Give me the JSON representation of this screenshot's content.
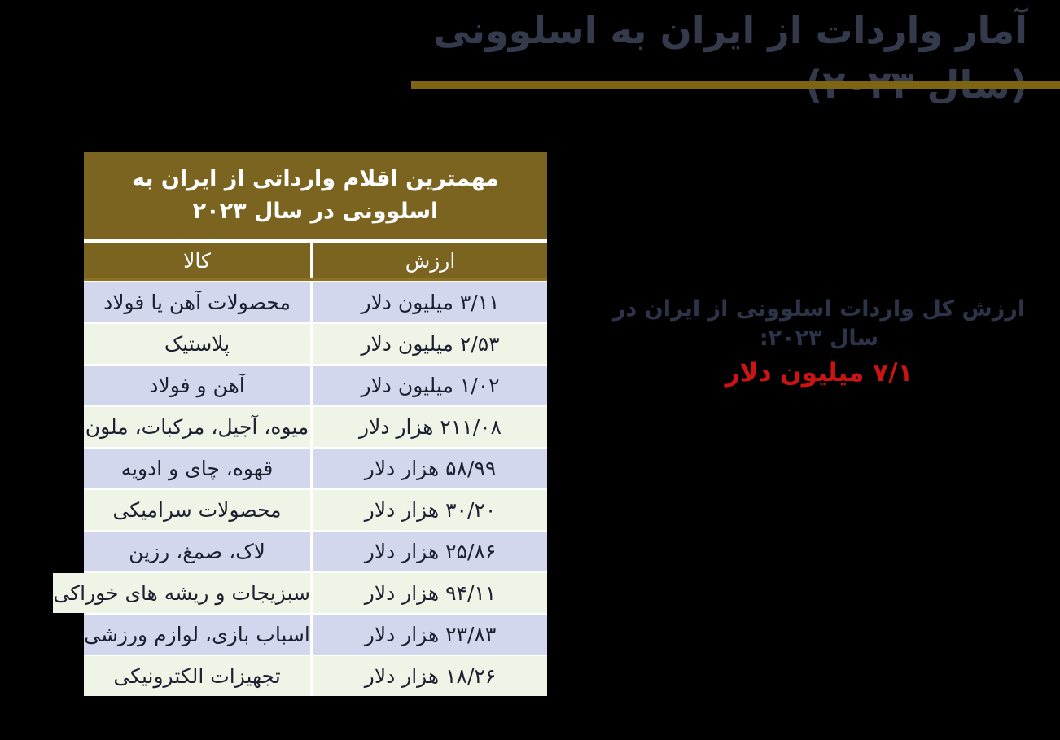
{
  "page": {
    "background_color": "#000000"
  },
  "title": {
    "text": "آمار واردات از ایران به اسلوونی (سال ۲۰۲۳)",
    "color": "#343a4c",
    "rule_color": "#7d6512"
  },
  "table": {
    "header": "مهمترین اقلام وارداتی از ایران به اسلوونی در سال ۲۰۲۳",
    "header_bg": "#7a6420",
    "header_text_color": "#ffffff",
    "columns": {
      "value_label": "ارزش",
      "goods_label": "کالا"
    },
    "row_colors": [
      "#d3d7ee",
      "#eef4e6"
    ],
    "rows": [
      {
        "goods": "محصولات آهن یا فولاد",
        "value": "۳/۱۱ میلیون دلار"
      },
      {
        "goods": "پلاستیک",
        "value": "۲/۵۳ میلیون دلار"
      },
      {
        "goods": "آهن و فولاد",
        "value": "۱/۰۲ میلیون دلار"
      },
      {
        "goods": "میوه، آجیل، مرکبات، ملون",
        "value": "۲۱۱/۰۸ هزار دلار"
      },
      {
        "goods": "قهوه، چای و ادویه",
        "value": "۵۸/۹۹ هزار دلار"
      },
      {
        "goods": "محصولات سرامیکی",
        "value": "۳۰/۲۰ هزار دلار"
      },
      {
        "goods": "لاک، صمغ، رزین",
        "value": "۲۵/۸۶ هزار دلار"
      },
      {
        "goods": "سبزیجات و ریشه های خوراکی",
        "value": "۹۴/۱۱ هزار دلار"
      },
      {
        "goods": "اسباب بازی، لوازم ورزشی",
        "value": "۲۳/۸۳ هزار دلار"
      },
      {
        "goods": "تجهیزات الکترونیکی",
        "value": "۱۸/۲۶ هزار دلار"
      }
    ]
  },
  "summary": {
    "label": "ارزش کل واردات اسلوونی از ایران در سال ۲۰۲۳:",
    "value": "۷/۱ میلیون دلار",
    "label_color": "#2e3447",
    "value_color": "#cc1414"
  }
}
